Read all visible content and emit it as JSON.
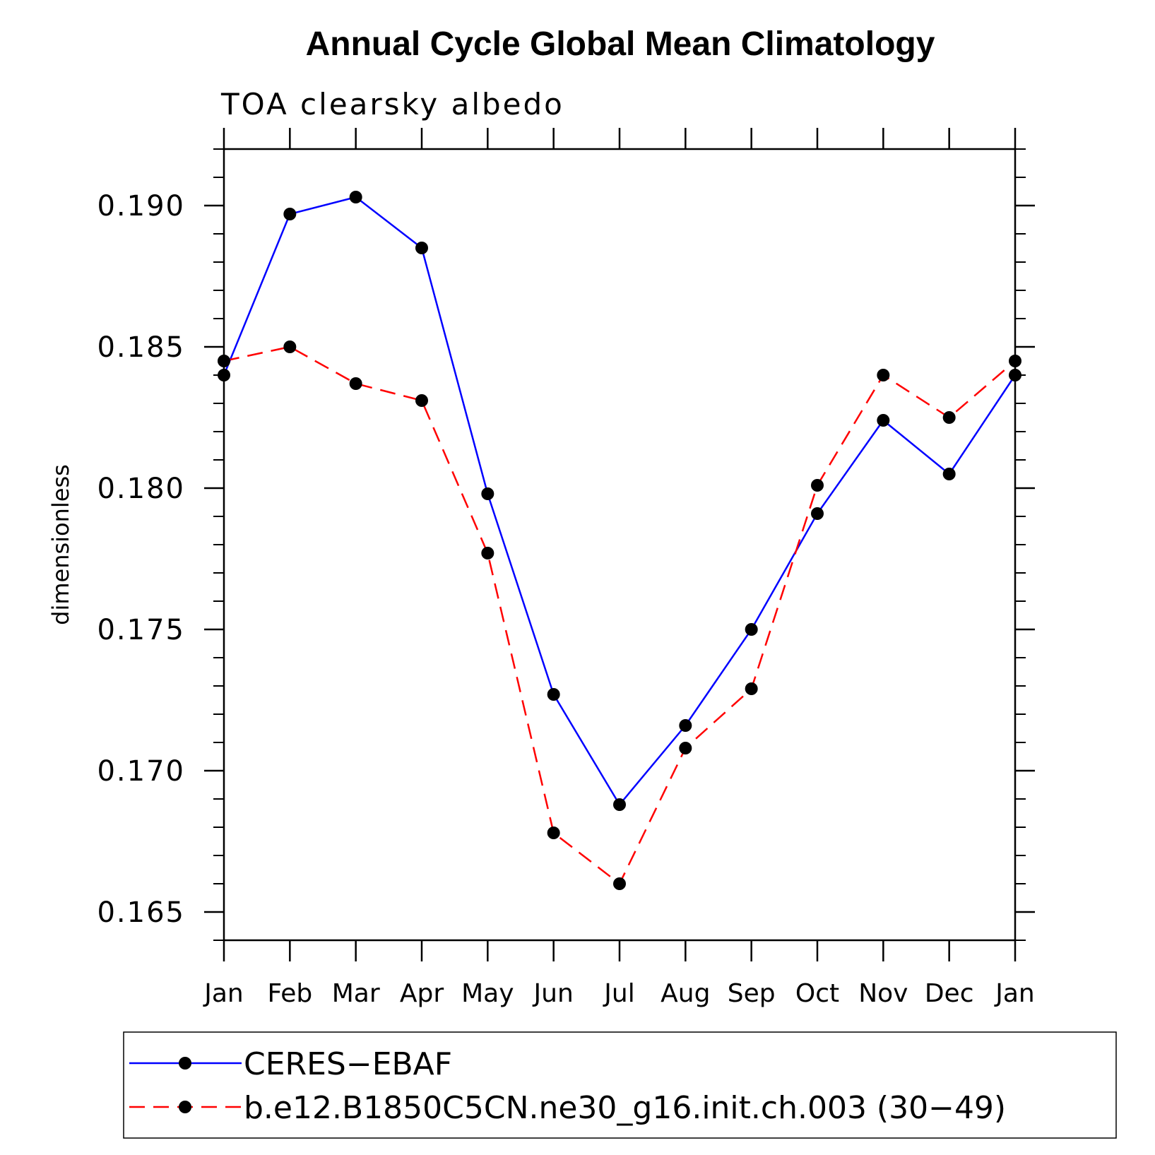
{
  "chart_data": {
    "type": "line",
    "title": "Annual Cycle Global Mean Climatology",
    "subtitle": "TOA clearsky albedo",
    "ylabel": "dimensionless",
    "xlabel": "",
    "categories": [
      "Jan",
      "Feb",
      "Mar",
      "Apr",
      "May",
      "Jun",
      "Jul",
      "Aug",
      "Sep",
      "Oct",
      "Nov",
      "Dec",
      "Jan"
    ],
    "ylim": [
      0.164,
      0.192
    ],
    "yticks": [
      0.165,
      0.17,
      0.175,
      0.18,
      0.185,
      0.19
    ],
    "ytick_labels": [
      "0.165",
      "0.170",
      "0.175",
      "0.180",
      "0.185",
      "0.190"
    ],
    "legend_position": "bottom",
    "series": [
      {
        "name": "CERES−EBAF",
        "color": "#0000ff",
        "line_style": "solid",
        "marker": "filled-circle",
        "values": [
          0.184,
          0.1897,
          0.1903,
          0.1885,
          0.1798,
          0.1727,
          0.1688,
          0.1716,
          0.175,
          0.1791,
          0.1824,
          0.1805,
          0.184
        ]
      },
      {
        "name": "b.e12.B1850C5CN.ne30_g16.init.ch.003 (30−49)",
        "color": "#ff0000",
        "line_style": "dashed",
        "marker": "filled-circle",
        "values": [
          0.1845,
          0.185,
          0.1837,
          0.1831,
          0.1777,
          0.1678,
          0.166,
          0.1708,
          0.1729,
          0.1801,
          0.184,
          0.1825,
          0.1845
        ]
      }
    ]
  }
}
